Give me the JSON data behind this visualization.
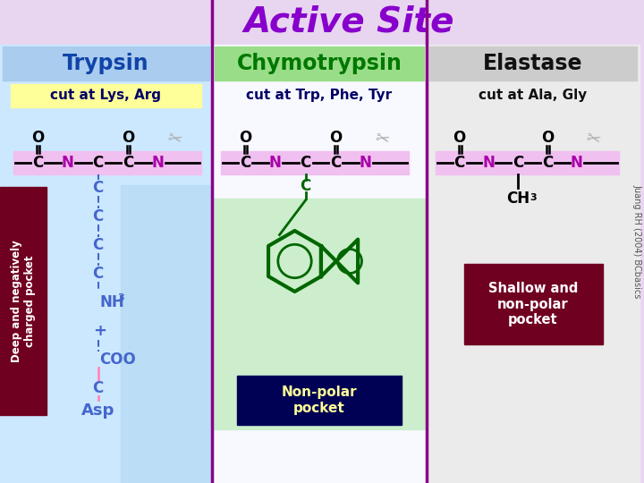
{
  "title": "Active Site",
  "title_color": "#8800CC",
  "bg_color": "#E8D5F0",
  "col1_bg": "#CCE8FF",
  "col2_bg": "#F8F8FF",
  "col3_bg": "#EBEBEB",
  "col1_header_bg": "#AACCEE",
  "col2_header_bg": "#99DD88",
  "col3_header_bg": "#CCCCCC",
  "col1_title": "Trypsin",
  "col2_title": "Chymotrypsin",
  "col3_title": "Elastase",
  "col1_title_color": "#1144AA",
  "col2_title_color": "#007700",
  "col3_title_color": "#111111",
  "col1_cut": "cut at Lys, Arg",
  "col2_cut": "cut at Trp, Phe, Tyr",
  "col3_cut": "cut at Ala, Gly",
  "cut1_bg": "#FFFF99",
  "peptide_bg": "#F0C0F0",
  "pocket1_bg": "#700020",
  "pocket1_text": "Deep and negatively\ncharged pocket",
  "pocket2_bg": "#CCEECC",
  "pocket2_text": "Non-polar\npocket",
  "pocket2_label_bg": "#000055",
  "pocket3_bg": "#700020",
  "pocket3_text": "Shallow and\nnon-polar\npocket",
  "chain_color": "#4466CC",
  "N_color": "#AA00AA",
  "dark_red_N": "#AA0000",
  "green_color": "#006600",
  "scissors_color": "#AAAAAA",
  "watermark": "Juang RH (2004) BCbasics",
  "divider_color": "#880088"
}
